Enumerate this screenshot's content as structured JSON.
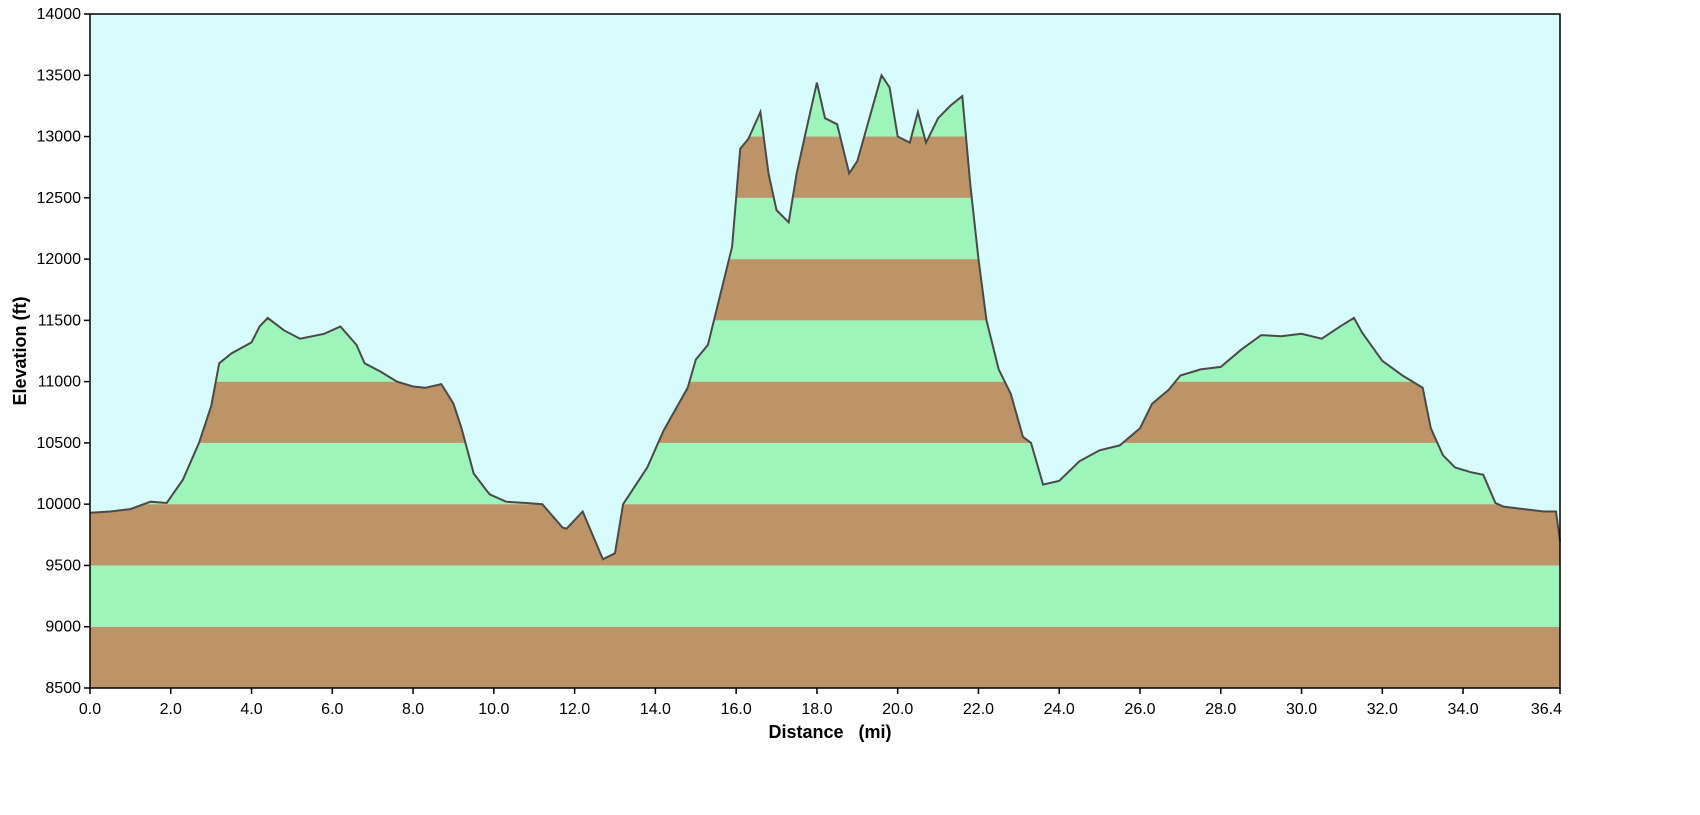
{
  "chart_data": {
    "type": "area",
    "title": "",
    "xlabel": "Distance   (mi)",
    "ylabel": "Elevation (ft)",
    "xlim": [
      0,
      36.4
    ],
    "ylim": [
      8500,
      14000
    ],
    "x_ticks": [
      "0.0",
      "2.0",
      "4.0",
      "6.0",
      "8.0",
      "10.0",
      "12.0",
      "14.0",
      "16.0",
      "18.0",
      "20.0",
      "22.0",
      "24.0",
      "26.0",
      "28.0",
      "30.0",
      "32.0",
      "34.0",
      "36.4"
    ],
    "x_tick_values": [
      0,
      2,
      4,
      6,
      8,
      10,
      12,
      14,
      16,
      18,
      20,
      22,
      24,
      26,
      28,
      30,
      32,
      34,
      36.4
    ],
    "y_ticks": [
      "8500",
      "9000",
      "9500",
      "10000",
      "10500",
      "11000",
      "11500",
      "12000",
      "12500",
      "13000",
      "13500",
      "14000"
    ],
    "y_tick_values": [
      8500,
      9000,
      9500,
      10000,
      10500,
      11000,
      11500,
      12000,
      12500,
      13000,
      13500,
      14000
    ],
    "grid": false,
    "colors": {
      "sky": "#d8fcfc",
      "band_brown": "#bd9467",
      "band_green": "#9ef5bb",
      "profile_line": "#4a4a4a"
    },
    "series": [
      {
        "x": [
          0,
          0.5,
          1.0,
          1.5,
          1.9,
          2.3,
          2.7,
          3.0,
          3.2,
          3.5,
          4.0,
          4.2,
          4.4,
          4.8,
          5.2,
          5.8,
          6.2,
          6.6,
          6.8,
          7.2,
          7.6,
          8.0,
          8.3,
          8.7,
          9.0,
          9.2,
          9.5,
          9.8,
          9.9,
          10.3,
          10.8,
          11.2,
          11.7,
          11.8,
          12.2,
          12.7,
          13.0,
          13.2,
          13.4,
          13.8,
          14.2,
          14.8,
          15.0,
          15.3,
          15.6,
          15.9,
          16.1,
          16.3,
          16.6,
          16.8,
          17.0,
          17.3,
          17.5,
          17.7,
          18.0,
          18.2,
          18.5,
          18.8,
          19.0,
          19.3,
          19.6,
          19.8,
          20.0,
          20.3,
          20.5,
          20.7,
          21.0,
          21.3,
          21.6,
          21.8,
          22.0,
          22.2,
          22.5,
          22.8,
          23.1,
          23.3,
          23.6,
          24.0,
          24.5,
          25.0,
          25.5,
          26.0,
          26.3,
          26.7,
          27.0,
          27.5,
          28.0,
          28.5,
          29.0,
          29.5,
          30.0,
          30.5,
          31.0,
          31.3,
          31.5,
          32.0,
          32.5,
          33.0,
          33.2,
          33.5,
          33.8,
          34.2,
          34.5,
          34.8,
          35.0,
          35.5,
          36.0,
          36.3,
          36.4
        ],
        "y": [
          9930,
          9940,
          9960,
          10020,
          10010,
          10200,
          10500,
          10800,
          11150,
          11230,
          11320,
          11450,
          11520,
          11420,
          11350,
          11390,
          11450,
          11300,
          11150,
          11080,
          11000,
          10960,
          10950,
          10980,
          10820,
          10620,
          10250,
          10120,
          10080,
          10020,
          10010,
          10000,
          9810,
          9800,
          9940,
          9550,
          9600,
          10000,
          10100,
          10300,
          10600,
          10950,
          11180,
          11300,
          11700,
          12100,
          12900,
          12980,
          13200,
          12700,
          12400,
          12300,
          12700,
          13000,
          13440,
          13150,
          13100,
          12700,
          12800,
          13150,
          13500,
          13400,
          13000,
          12950,
          13200,
          12950,
          13150,
          13250,
          13330,
          12600,
          12000,
          11500,
          11100,
          10900,
          10550,
          10500,
          10160,
          10190,
          10350,
          10440,
          10480,
          10620,
          10820,
          10930,
          11050,
          11100,
          11120,
          11260,
          11380,
          11370,
          11390,
          11350,
          11460,
          11520,
          11400,
          11170,
          11050,
          10950,
          10620,
          10400,
          10300,
          10260,
          10240,
          10010,
          9980,
          9960,
          9940,
          9940,
          9700
        ]
      }
    ]
  }
}
